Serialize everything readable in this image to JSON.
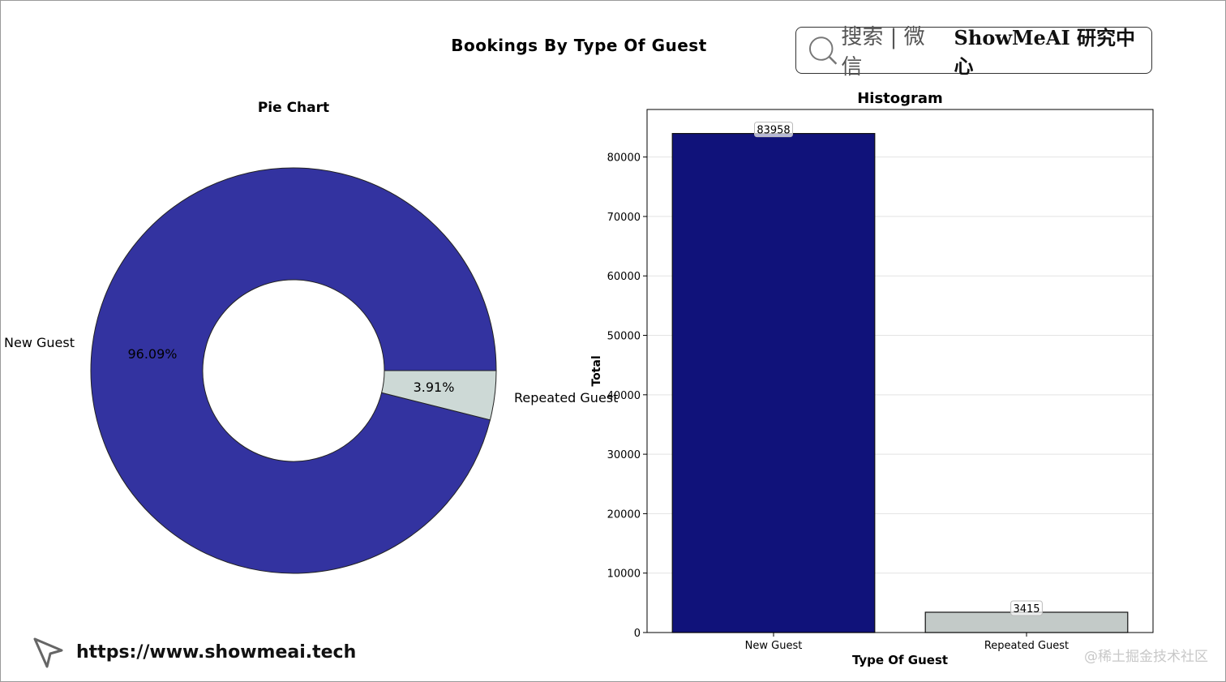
{
  "page": {
    "suptitle": "Bookings By Type Of Guest",
    "search_badge": {
      "search_label": "搜索 | 微信",
      "brand": "ShowMeAI 研究中心"
    },
    "footer_url": "https://www.showmeai.tech",
    "watermark": "@稀土掘金技术社区"
  },
  "chart_data": [
    {
      "type": "pie",
      "title": "Pie Chart",
      "donut": true,
      "labels": [
        "New Guest",
        "Repeated Guest"
      ],
      "values": [
        96.09,
        3.91
      ],
      "value_labels": [
        "96.09%",
        "3.91%"
      ],
      "colors": [
        "#3333a0",
        "#cdd9d6"
      ]
    },
    {
      "type": "bar",
      "title": "Histogram",
      "xlabel": "Type Of Guest",
      "ylabel": "Total",
      "categories": [
        "New Guest",
        "Repeated Guest"
      ],
      "values": [
        83958,
        3415
      ],
      "value_labels": [
        "83958",
        "3415"
      ],
      "colors": [
        "#10127a",
        "#c3cac8"
      ],
      "ylim": [
        0,
        88000
      ],
      "yticks": [
        0,
        10000,
        20000,
        30000,
        40000,
        50000,
        60000,
        70000,
        80000
      ],
      "grid": "y"
    }
  ]
}
